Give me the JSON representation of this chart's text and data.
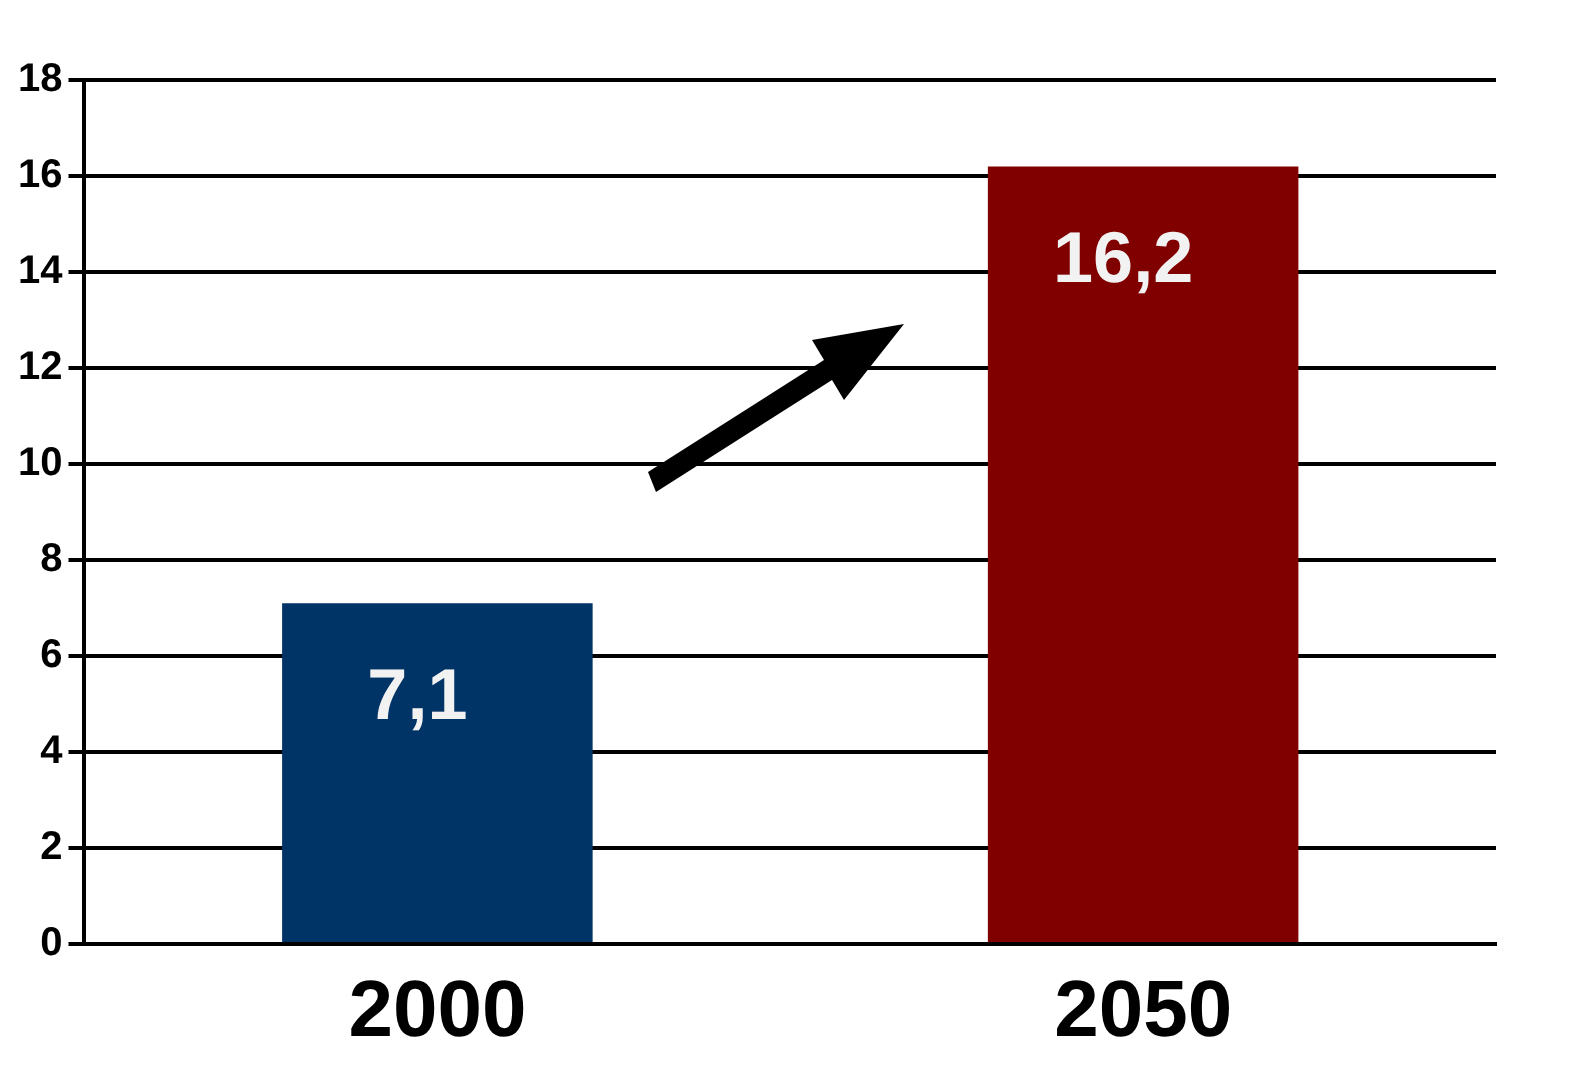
{
  "chart_data": {
    "type": "bar",
    "categories": [
      "2000",
      "2050"
    ],
    "values": [
      7.1,
      16.2
    ],
    "colors": [
      "#003366",
      "#800000"
    ],
    "value_labels": [
      "7,1",
      "16,2"
    ],
    "ylim": [
      0,
      18
    ],
    "yticks": [
      0,
      2,
      4,
      6,
      8,
      10,
      12,
      14,
      16,
      18
    ],
    "grid": "y",
    "legend": false
  }
}
